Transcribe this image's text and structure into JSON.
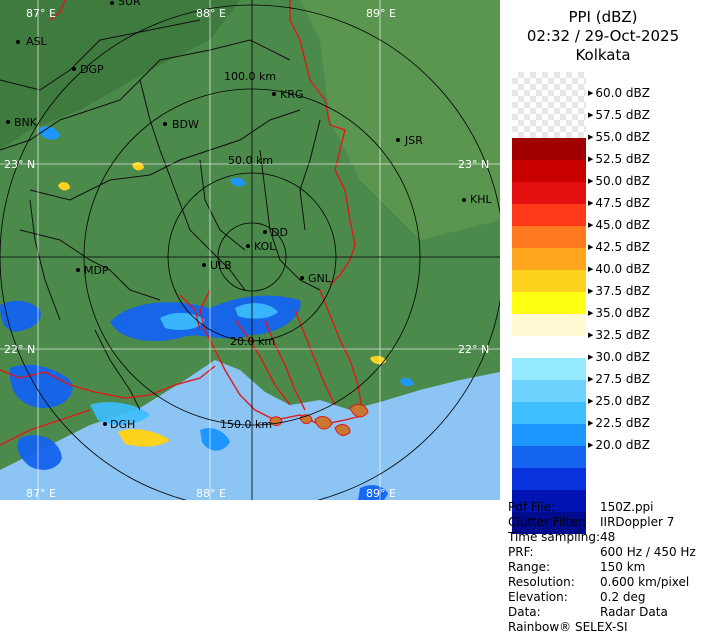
{
  "header": {
    "product": "PPI (dBZ)",
    "datetime": "02:32 / 29-Oct-2025",
    "station": "Kolkata"
  },
  "legend": [
    {
      "label": "60.0 dBZ",
      "color": ""
    },
    {
      "label": "57.5 dBZ",
      "color": "#a00000"
    },
    {
      "label": "55.0 dBZ",
      "color": "#c80000"
    },
    {
      "label": "52.5 dBZ",
      "color": "#e41010"
    },
    {
      "label": "50.0 dBZ",
      "color": "#ff3a1a"
    },
    {
      "label": "47.5 dBZ",
      "color": "#ff7a1e"
    },
    {
      "label": "45.0 dBZ",
      "color": "#ffa51e"
    },
    {
      "label": "42.5 dBZ",
      "color": "#ffd21e"
    },
    {
      "label": "40.0 dBZ",
      "color": "#ffff14"
    },
    {
      "label": "37.5 dBZ",
      "color": "#fffad2"
    },
    {
      "label": "35.0 dBZ",
      "color": "#ffffff"
    },
    {
      "label": "32.5 dBZ",
      "color": "#96eaff"
    },
    {
      "label": "30.0 dBZ",
      "color": "#6ed2ff"
    },
    {
      "label": "27.5 dBZ",
      "color": "#3cbeff"
    },
    {
      "label": "25.0 dBZ",
      "color": "#1e96ff"
    },
    {
      "label": "22.5 dBZ",
      "color": "#1464f0"
    },
    {
      "label": "20.0 dBZ",
      "color": "#0a32dc"
    },
    {
      "label": "",
      "color": "#0014b4"
    },
    {
      "label": "",
      "color": "#000a8c"
    }
  ],
  "meta": [
    {
      "key": "Pdf File:",
      "value": "150Z.ppi"
    },
    {
      "key": "Clutter Filter:",
      "value": "IIRDoppler 7"
    },
    {
      "key": "Time sampling:",
      "value": "48"
    },
    {
      "key": "PRF:",
      "value": "600 Hz / 450 Hz"
    },
    {
      "key": "Range:",
      "value": "150 km"
    },
    {
      "key": "Resolution:",
      "value": "0.600 km/pixel"
    },
    {
      "key": "Elevation:",
      "value": "0.2 deg"
    },
    {
      "key": "Data:",
      "value": "Radar Data"
    }
  ],
  "footer": "Rainbow® SELEX-SI",
  "map": {
    "grid_labels": {
      "top": [
        "87° E",
        "88° E",
        "89° E"
      ],
      "bottom": [
        "87° E",
        "88° E",
        "89° E"
      ],
      "right": [
        "23° N",
        "22° N"
      ],
      "left": [
        "23° N",
        "22° N"
      ]
    },
    "range_rings": [
      "50.0 km",
      "100.0 km",
      "20.0 km",
      "150.0 km"
    ],
    "places": [
      "SUR",
      "ASL",
      "DGP",
      "BNK",
      "KRG",
      "BDW",
      "JSR",
      "KHL",
      "DD",
      "KOL",
      "ULB",
      "MDP",
      "GNL",
      "DGH"
    ],
    "colors": {
      "land": "#4c8a4c",
      "sea": "#8cc4f4",
      "border": "#e01818",
      "district": "#101010"
    }
  }
}
